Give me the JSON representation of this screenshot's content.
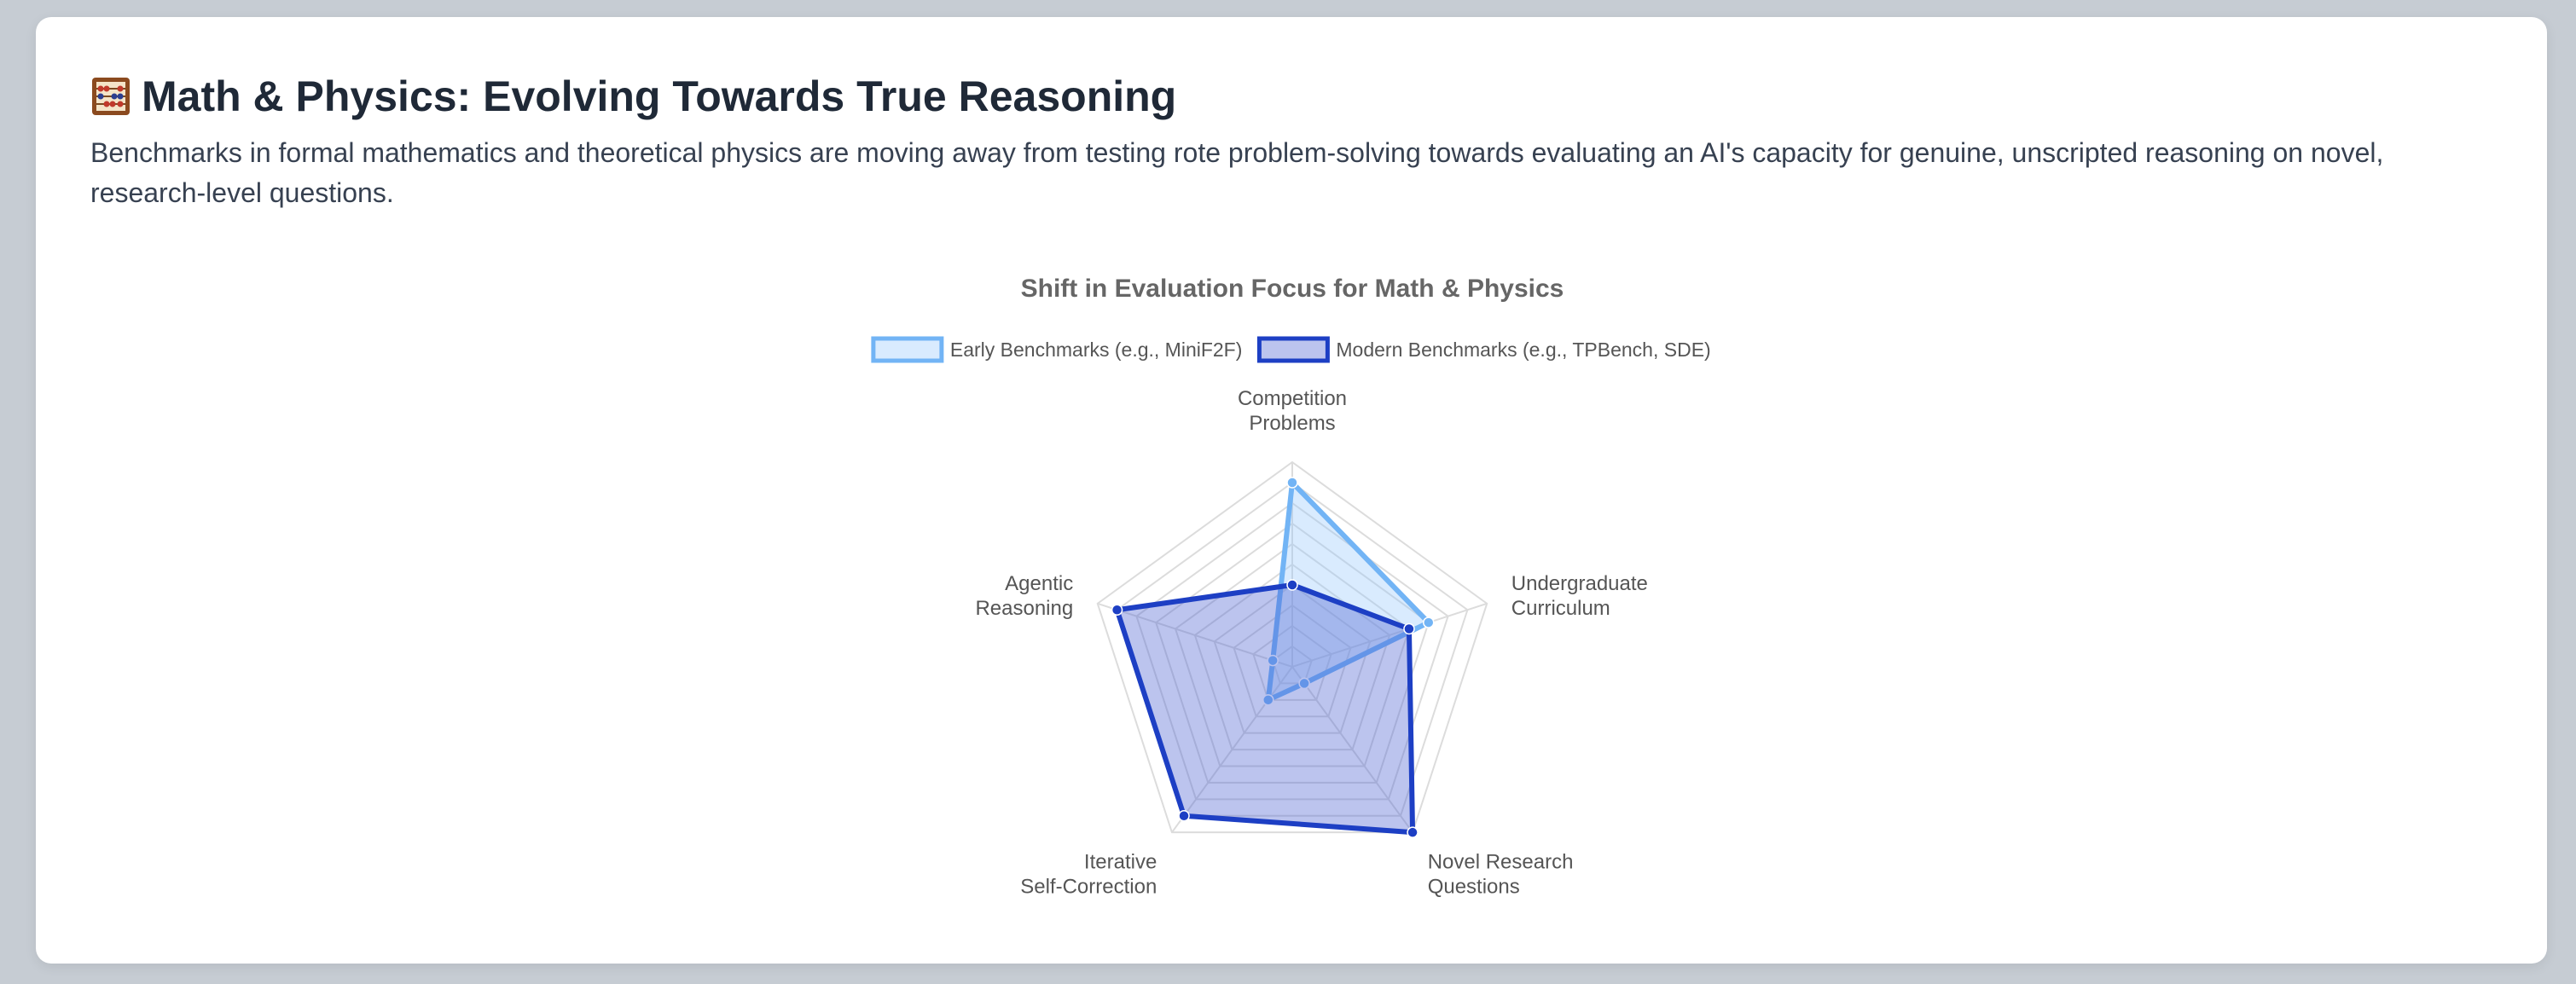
{
  "section": {
    "icon": "abacus-icon",
    "title": "Math & Physics: Evolving Towards True Reasoning",
    "description": "Benchmarks in formal mathematics and theoretical physics are moving away from testing rote problem-solving towards evaluating an AI's capacity for genuine, unscripted reasoning on novel, research-level questions."
  },
  "chart_data": {
    "type": "radar",
    "title": "Shift in Evaluation Focus for Math & Physics",
    "axes": [
      [
        "Competition",
        "Problems"
      ],
      [
        "Undergraduate",
        "Curriculum"
      ],
      [
        "Novel Research",
        "Questions"
      ],
      [
        "Iterative",
        "Self-Correction"
      ],
      [
        "Agentic",
        "Reasoning"
      ]
    ],
    "r_range": [
      0,
      10
    ],
    "grid": true,
    "legend_position": "top",
    "series": [
      {
        "name": "Early Benchmarks (e.g., MiniF2F)",
        "values": [
          9,
          7,
          1,
          2,
          1
        ],
        "color": "#72b4f5",
        "fill": "rgba(147, 197, 253, 0.35)"
      },
      {
        "name": "Modern Benchmarks (e.g., TPBench, SDE)",
        "values": [
          4,
          6,
          10,
          9,
          9
        ],
        "color": "#1d3fc4",
        "fill": "rgba(79, 100, 210, 0.38)"
      }
    ]
  }
}
